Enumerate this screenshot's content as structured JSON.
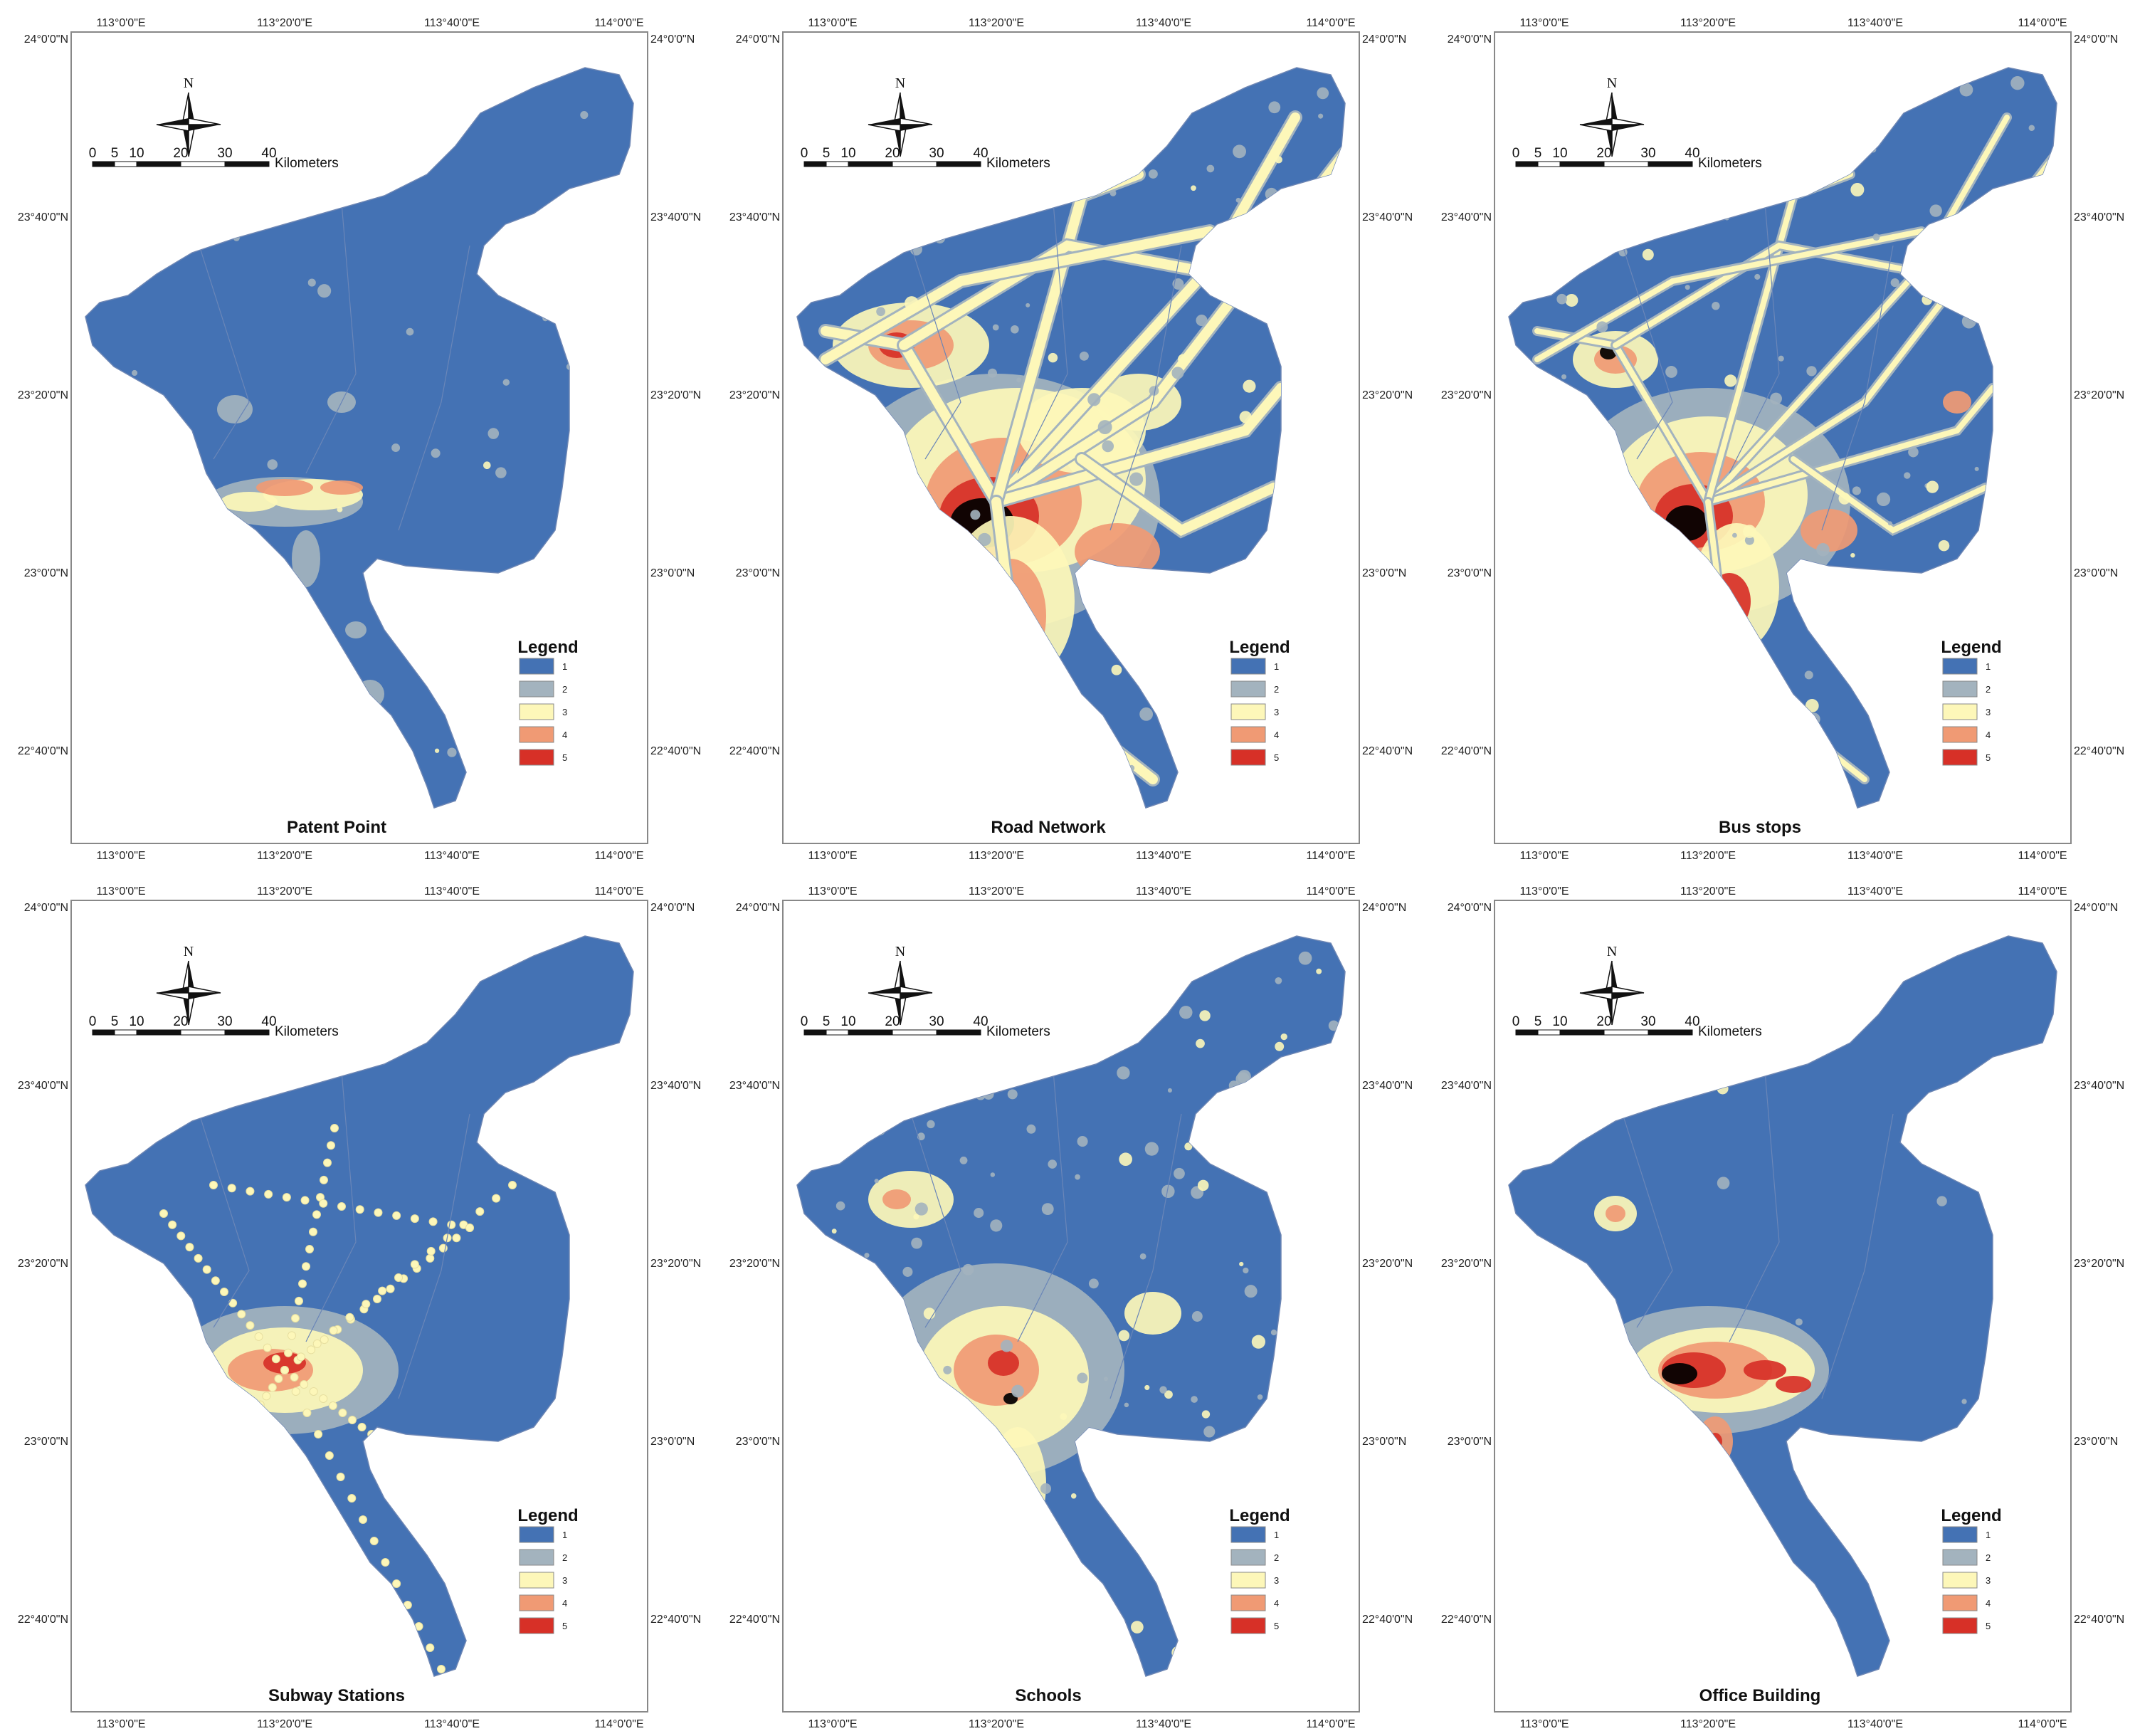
{
  "map_panels": [
    {
      "title": "Patent Point",
      "pattern": "patent"
    },
    {
      "title": "Road Network",
      "pattern": "road"
    },
    {
      "title": "Bus stops",
      "pattern": "bus"
    },
    {
      "title": "Subway Stations",
      "pattern": "subway"
    },
    {
      "title": "Schools",
      "pattern": "schools"
    },
    {
      "title": "Office Building",
      "pattern": "office"
    }
  ],
  "axes": {
    "lon_labels": [
      "113°0'0\"E",
      "113°20'0\"E",
      "113°40'0\"E",
      "114°0'0\"E"
    ],
    "lat_labels": [
      "24°0'0\"N",
      "23°40'0\"N",
      "23°20'0\"N",
      "23°0'0\"N",
      "22°40'0\"N"
    ]
  },
  "north_arrow": {
    "label": "N",
    "icon": "north-arrow-icon"
  },
  "scale_bar": {
    "ticks": [
      "0",
      "5",
      "10",
      "20",
      "30",
      "40"
    ],
    "unit": "Kilometers"
  },
  "legend": {
    "title": "Legend",
    "classes": [
      {
        "label": "1",
        "color": "#4472b4"
      },
      {
        "label": "2",
        "color": "#a3b3be"
      },
      {
        "label": "3",
        "color": "#fdf7b9"
      },
      {
        "label": "4",
        "color": "#f09a74"
      },
      {
        "label": "5",
        "color": "#d73027"
      }
    ]
  }
}
